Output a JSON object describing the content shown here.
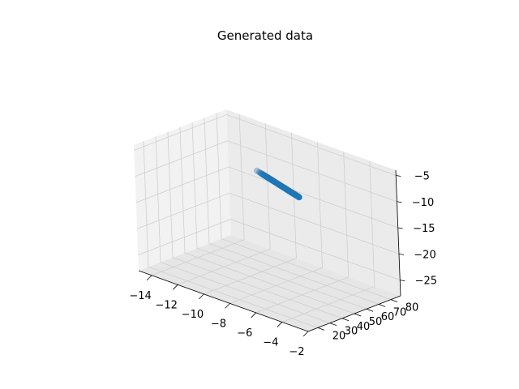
{
  "chart_data": {
    "type": "scatter",
    "projection": "3d",
    "title": "Generated data",
    "xlabel": "",
    "ylabel": "",
    "zlabel": "",
    "xlim": [
      -15,
      -2
    ],
    "ylim": [
      12,
      88
    ],
    "zlim": [
      -28,
      -4
    ],
    "x_ticks": [
      "−14",
      "−12",
      "−10",
      "−8",
      "−6",
      "−4",
      "−2"
    ],
    "x_tick_values": [
      -14,
      -12,
      -10,
      -8,
      -6,
      -4,
      -2
    ],
    "y_ticks": [
      "20",
      "30",
      "40",
      "50",
      "60",
      "70",
      "80"
    ],
    "y_tick_values": [
      20,
      30,
      40,
      50,
      60,
      70,
      80
    ],
    "z_ticks": [
      "−5",
      "−10",
      "−15",
      "−20",
      "−25"
    ],
    "z_tick_values": [
      -5,
      -10,
      -15,
      -20,
      -25
    ],
    "grid": true,
    "marker_color": "#1f77b4",
    "point_cluster": {
      "start": [
        -12.6,
        86,
        -13.4
      ],
      "end": [
        -9.4,
        86,
        -15.6
      ],
      "count": 60
    }
  }
}
